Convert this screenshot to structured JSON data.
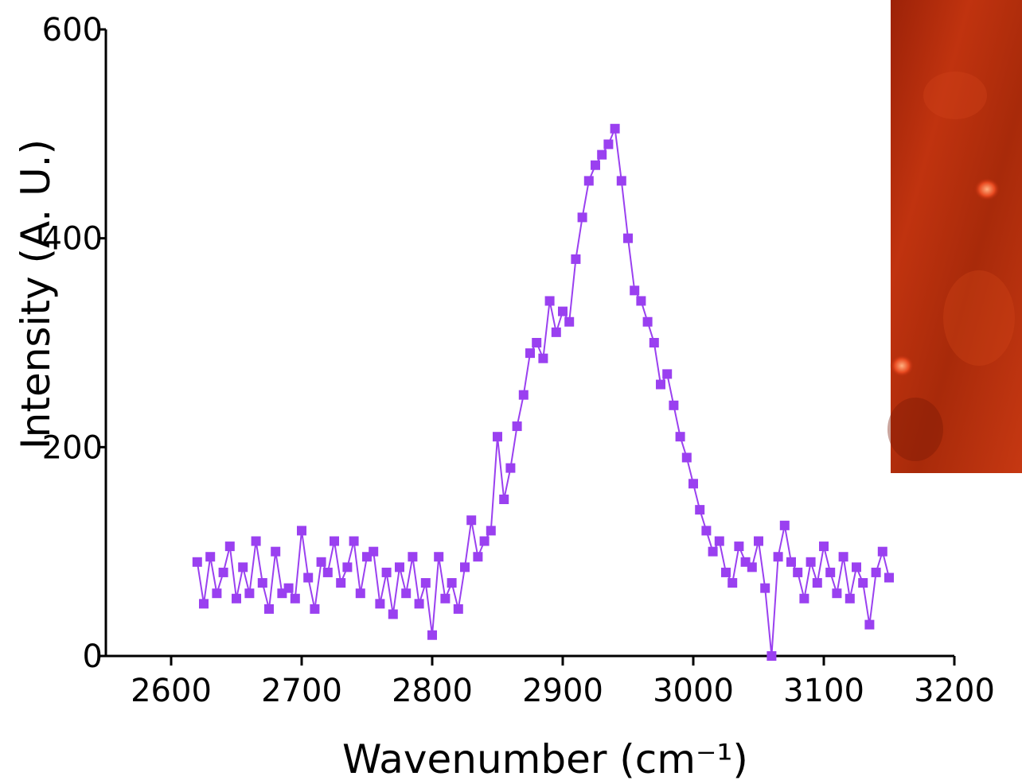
{
  "chart_data": {
    "type": "line",
    "xlabel": "Wavenumber (cm⁻¹)",
    "ylabel": "Intensity (A. U.)",
    "xlim": [
      2550,
      3200
    ],
    "xticks": [
      2600,
      2700,
      2800,
      2900,
      3000,
      3100,
      3200
    ],
    "ylim": [
      0,
      600
    ],
    "yticks": [
      0,
      200,
      400,
      600
    ],
    "x": [
      2620,
      2625,
      2630,
      2635,
      2640,
      2645,
      2650,
      2655,
      2660,
      2665,
      2670,
      2675,
      2680,
      2685,
      2690,
      2695,
      2700,
      2705,
      2710,
      2715,
      2720,
      2725,
      2730,
      2735,
      2740,
      2745,
      2750,
      2755,
      2760,
      2765,
      2770,
      2775,
      2780,
      2785,
      2790,
      2795,
      2800,
      2805,
      2810,
      2815,
      2820,
      2825,
      2830,
      2835,
      2840,
      2845,
      2850,
      2855,
      2860,
      2865,
      2870,
      2875,
      2880,
      2885,
      2890,
      2895,
      2900,
      2905,
      2910,
      2915,
      2920,
      2925,
      2930,
      2935,
      2940,
      2945,
      2950,
      2955,
      2960,
      2965,
      2970,
      2975,
      2980,
      2985,
      2990,
      2995,
      3000,
      3005,
      3010,
      3015,
      3020,
      3025,
      3030,
      3035,
      3040,
      3045,
      3050,
      3055,
      3060,
      3065,
      3070,
      3075,
      3080,
      3085,
      3090,
      3095,
      3100,
      3105,
      3110,
      3115,
      3120,
      3125,
      3130,
      3135,
      3140,
      3145,
      3150
    ],
    "series": [
      {
        "color": "#9a40f0",
        "values": [
          90,
          50,
          95,
          60,
          80,
          105,
          55,
          85,
          60,
          110,
          70,
          45,
          100,
          60,
          65,
          55,
          120,
          75,
          45,
          90,
          80,
          110,
          70,
          85,
          110,
          60,
          95,
          100,
          50,
          80,
          40,
          85,
          60,
          95,
          50,
          70,
          20,
          95,
          55,
          70,
          45,
          85,
          130,
          95,
          110,
          120,
          210,
          150,
          180,
          220,
          250,
          290,
          300,
          285,
          340,
          310,
          330,
          320,
          380,
          420,
          455,
          470,
          480,
          490,
          505,
          455,
          400,
          350,
          340,
          320,
          300,
          260,
          270,
          240,
          210,
          190,
          165,
          140,
          120,
          100,
          110,
          80,
          70,
          105,
          90,
          85,
          110,
          65,
          0,
          95,
          125,
          90,
          80,
          55,
          90,
          70,
          105,
          80,
          60,
          95,
          55,
          85,
          70,
          30,
          80,
          100,
          75
        ]
      }
    ]
  }
}
